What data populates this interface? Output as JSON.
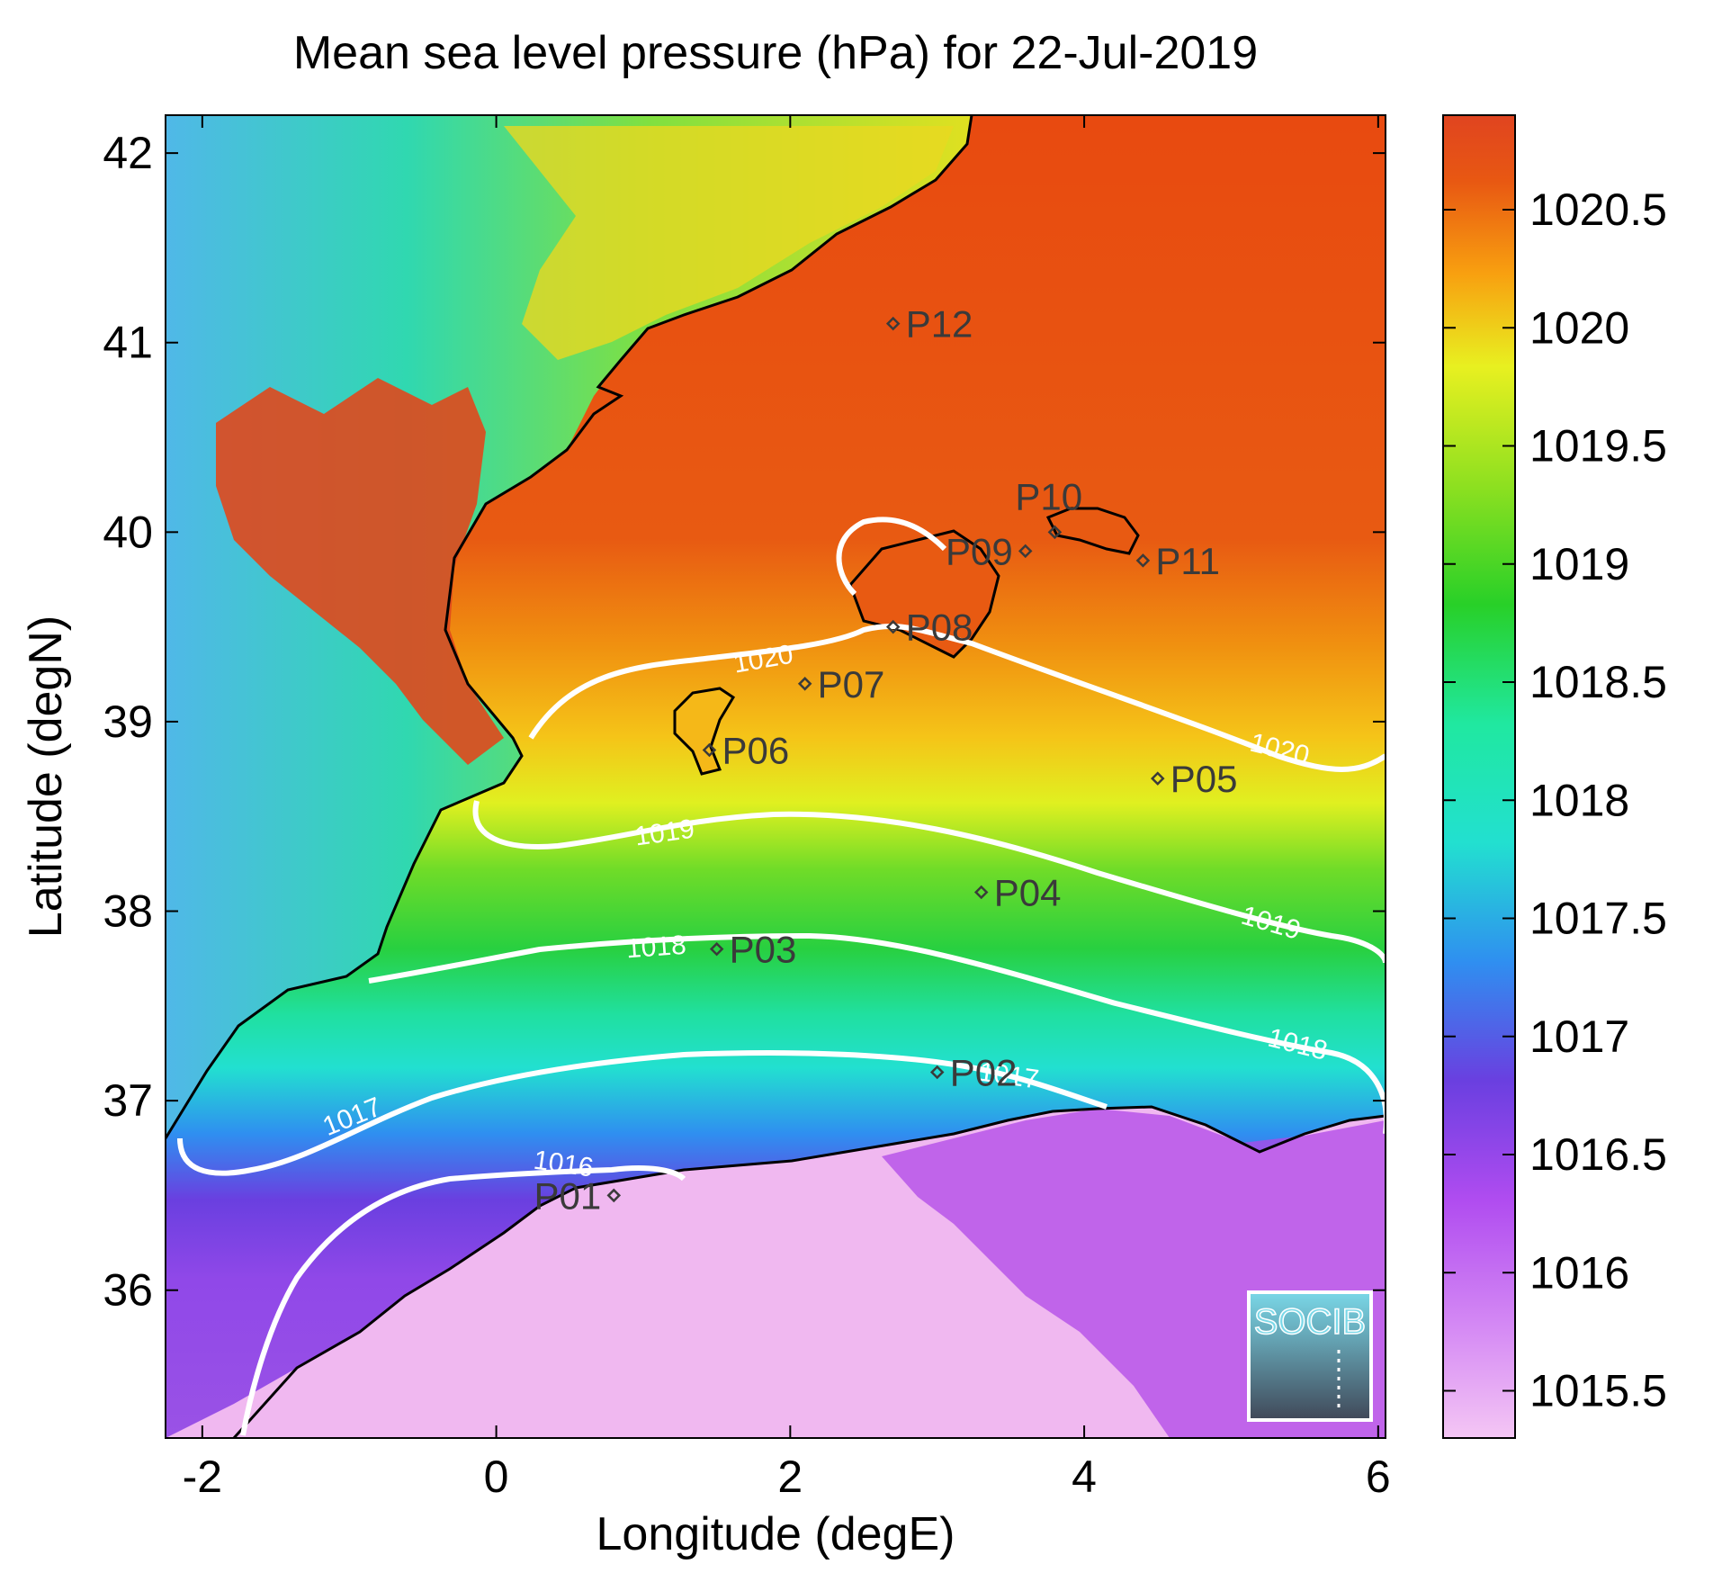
{
  "title": "Mean sea level pressure (hPa) for 22-Jul-2019",
  "xlabel": "Longitude (degE)",
  "ylabel": "Latitude (degN)",
  "x_ticks": [
    "-2",
    "0",
    "2",
    "4",
    "6"
  ],
  "y_ticks": [
    "36",
    "37",
    "38",
    "39",
    "40",
    "41",
    "42"
  ],
  "colorbar_ticks": [
    "1015.5",
    "1016",
    "1016.5",
    "1017",
    "1017.5",
    "1018",
    "1018.5",
    "1019",
    "1019.5",
    "1020",
    "1020.5"
  ],
  "contour_labels": [
    "1016",
    "1017",
    "1017",
    "1018",
    "1018",
    "1019",
    "1019",
    "1020",
    "1020"
  ],
  "stations": [
    {
      "id": "P01",
      "lon": 0.8,
      "lat": 36.5
    },
    {
      "id": "P02",
      "lon": 3.0,
      "lat": 37.15
    },
    {
      "id": "P03",
      "lon": 1.5,
      "lat": 37.8
    },
    {
      "id": "P04",
      "lon": 3.3,
      "lat": 38.1
    },
    {
      "id": "P05",
      "lon": 4.5,
      "lat": 38.7
    },
    {
      "id": "P06",
      "lon": 1.45,
      "lat": 38.85
    },
    {
      "id": "P07",
      "lon": 2.1,
      "lat": 39.2
    },
    {
      "id": "P08",
      "lon": 2.7,
      "lat": 39.5
    },
    {
      "id": "P09",
      "lon": 3.6,
      "lat": 39.9
    },
    {
      "id": "P10",
      "lon": 3.8,
      "lat": 40.0
    },
    {
      "id": "P11",
      "lon": 4.4,
      "lat": 39.85
    },
    {
      "id": "P12",
      "lon": 2.7,
      "lat": 41.1
    }
  ],
  "logo_text": "SOCIB",
  "colors": {
    "c1015_5": "#f0b8f0",
    "c1016": "#b84ef0",
    "c1016_5": "#6a3fe0",
    "c1017": "#2f8ff0",
    "c1017_5": "#22e0d0",
    "c1018": "#20e8a0",
    "c1018_5": "#28d028",
    "c1019": "#8ee020",
    "c1019_5": "#e8f020",
    "c1020": "#f8a010",
    "c1020_5": "#e84e10",
    "c1021": "#e0401c"
  }
}
